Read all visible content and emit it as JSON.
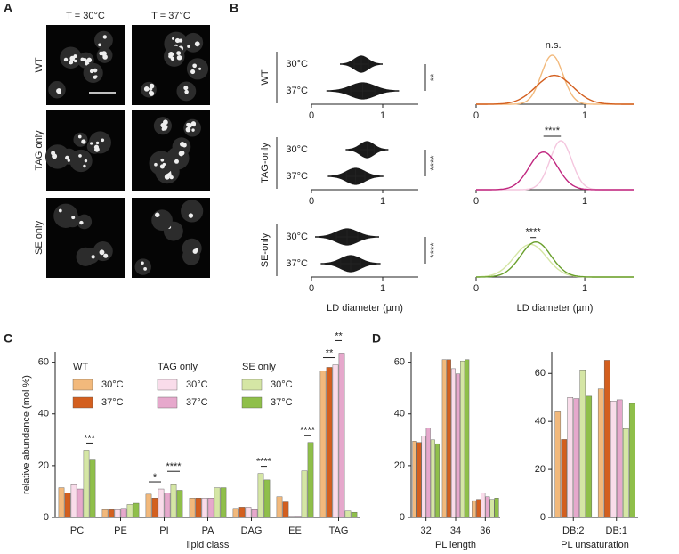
{
  "panel_a": {
    "label": "A",
    "columns": [
      "T = 30°C",
      "T = 37°C"
    ],
    "rows": [
      "WT",
      "TAG only",
      "SE only"
    ]
  },
  "panel_b": {
    "label": "B",
    "xlabel": "LD diameter (µm)",
    "swarm_xlim": [
      0,
      1.5
    ],
    "swarm_xticks": [
      0,
      1
    ],
    "density_xlim": [
      0,
      1.45
    ],
    "density_xticks": [
      0,
      1
    ],
    "groups": [
      {
        "name": "WT",
        "significance": "**",
        "density_annotation": "n.s.",
        "conditions": [
          {
            "name": "30°C",
            "mean": 0.7,
            "sd": 0.1,
            "color": "#f2b97c"
          },
          {
            "name": "37°C",
            "mean": 0.72,
            "sd": 0.17,
            "color": "#d35f1f"
          }
        ]
      },
      {
        "name": "TAG-only",
        "significance": "****",
        "density_annotation": "****",
        "conditions": [
          {
            "name": "30°C",
            "mean": 0.78,
            "sd": 0.1,
            "color": "#f4c6de"
          },
          {
            "name": "37°C",
            "mean": 0.62,
            "sd": 0.13,
            "color": "#c0267f"
          }
        ]
      },
      {
        "name": "SE-only",
        "significance": "****",
        "density_annotation": "****",
        "conditions": [
          {
            "name": "30°C",
            "mean": 0.5,
            "sd": 0.15,
            "color": "#d5e6a5"
          },
          {
            "name": "37°C",
            "mean": 0.55,
            "sd": 0.14,
            "color": "#6aa02d"
          }
        ]
      }
    ]
  },
  "chart_data": [
    {
      "type": "bar",
      "panel_label": "C",
      "ylabel": "relative abundance (mol %)",
      "xlabel": "lipid class",
      "categories": [
        "PC",
        "PE",
        "PI",
        "PA",
        "DAG",
        "EE",
        "TAG"
      ],
      "ylim": [
        0,
        64
      ],
      "yticks": [
        0,
        20,
        40,
        60
      ],
      "legend_groups": [
        "WT",
        "TAG only",
        "SE only"
      ],
      "series": [
        {
          "name": "30°C",
          "color": "#f2b97c",
          "values": [
            11.5,
            3,
            9,
            7.5,
            3.5,
            8,
            56.5
          ]
        },
        {
          "name": "37°C",
          "color": "#d35f1f",
          "values": [
            9.5,
            3,
            7.5,
            7.5,
            4,
            6,
            58
          ]
        },
        {
          "name": "30°C",
          "color": "#f9dcea",
          "values": [
            13,
            3,
            11,
            7.5,
            4,
            0.5,
            59
          ]
        },
        {
          "name": "37°C",
          "color": "#e6a8cc",
          "values": [
            11,
            3.5,
            9.5,
            7.5,
            3,
            0.5,
            63.5
          ]
        },
        {
          "name": "30°C",
          "color": "#d5e6a5",
          "values": [
            26,
            5,
            13,
            11.5,
            17,
            18,
            2.5
          ]
        },
        {
          "name": "37°C",
          "color": "#8fbf4a",
          "values": [
            22.5,
            5.5,
            10.5,
            11.5,
            14.5,
            29,
            2
          ]
        }
      ],
      "annotations": [
        "***",
        "*",
        "****",
        "****",
        "****",
        "**",
        "**"
      ]
    },
    {
      "type": "bar",
      "panel_label": "D",
      "xlabel": "PL length",
      "categories": [
        "32",
        "34",
        "36"
      ],
      "ylim": [
        0,
        64
      ],
      "yticks": [
        0,
        20,
        40,
        60
      ],
      "series": [
        {
          "color": "#f2b97c",
          "values": [
            29.5,
            61,
            6.5
          ]
        },
        {
          "color": "#d35f1f",
          "values": [
            29,
            61,
            7
          ]
        },
        {
          "color": "#f9dcea",
          "values": [
            31.5,
            57.5,
            9.5
          ]
        },
        {
          "color": "#e6a8cc",
          "values": [
            34.5,
            55.5,
            8
          ]
        },
        {
          "color": "#d5e6a5",
          "values": [
            30,
            60.5,
            7
          ]
        },
        {
          "color": "#8fbf4a",
          "values": [
            28.5,
            61,
            7.5
          ]
        }
      ]
    },
    {
      "type": "bar",
      "xlabel": "PL unsaturation",
      "categories": [
        "DB:2",
        "DB:1"
      ],
      "ylim": [
        0,
        69
      ],
      "yticks": [
        0,
        20,
        40,
        60
      ],
      "series": [
        {
          "color": "#f2b97c",
          "values": [
            44,
            53.5
          ]
        },
        {
          "color": "#d35f1f",
          "values": [
            32.5,
            65.5
          ]
        },
        {
          "color": "#f9dcea",
          "values": [
            50,
            48.5
          ]
        },
        {
          "color": "#e6a8cc",
          "values": [
            49.5,
            49
          ]
        },
        {
          "color": "#d5e6a5",
          "values": [
            61.5,
            37
          ]
        },
        {
          "color": "#8fbf4a",
          "values": [
            50.5,
            47.5
          ]
        }
      ]
    }
  ]
}
